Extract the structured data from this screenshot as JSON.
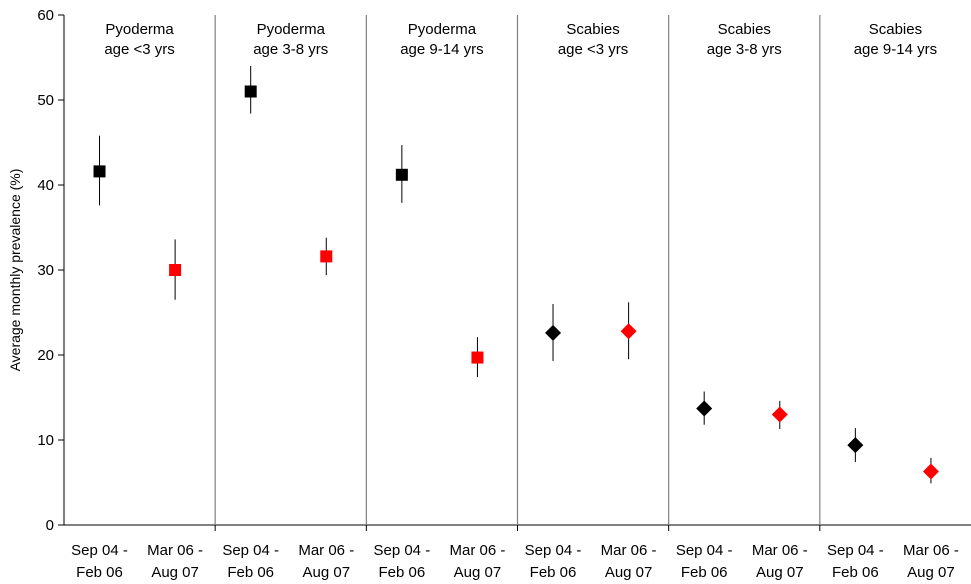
{
  "chart_data": {
    "type": "scatter",
    "ylabel": "Average monthly prevalence (%)",
    "ylim": [
      0,
      60
    ],
    "y_ticks": [
      0,
      10,
      20,
      30,
      40,
      50,
      60
    ],
    "period_labels": [
      [
        "Sep 04 -",
        "Feb 06"
      ],
      [
        "Mar 06 -",
        "Aug 07"
      ]
    ],
    "grid": false,
    "panels": [
      {
        "title": [
          "Pyoderma",
          "age <3 yrs"
        ],
        "marker": "square",
        "points": [
          {
            "period": 0,
            "value": 41.6,
            "lower": 37.6,
            "upper": 45.8,
            "color": "#000000"
          },
          {
            "period": 1,
            "value": 30.0,
            "lower": 26.5,
            "upper": 33.6,
            "color": "#ff0000"
          }
        ]
      },
      {
        "title": [
          "Pyoderma",
          "age 3-8 yrs"
        ],
        "marker": "square",
        "points": [
          {
            "period": 0,
            "value": 51.0,
            "lower": 48.4,
            "upper": 54.0,
            "color": "#000000"
          },
          {
            "period": 1,
            "value": 31.6,
            "lower": 29.4,
            "upper": 33.8,
            "color": "#ff0000"
          }
        ]
      },
      {
        "title": [
          "Pyoderma",
          "age 9-14 yrs"
        ],
        "marker": "square",
        "points": [
          {
            "period": 0,
            "value": 41.2,
            "lower": 37.9,
            "upper": 44.7,
            "color": "#000000"
          },
          {
            "period": 1,
            "value": 19.7,
            "lower": 17.4,
            "upper": 22.1,
            "color": "#ff0000"
          }
        ]
      },
      {
        "title": [
          "Scabies",
          "age <3 yrs"
        ],
        "marker": "diamond",
        "points": [
          {
            "period": 0,
            "value": 22.6,
            "lower": 19.3,
            "upper": 26.0,
            "color": "#000000"
          },
          {
            "period": 1,
            "value": 22.8,
            "lower": 19.5,
            "upper": 26.2,
            "color": "#ff0000"
          }
        ]
      },
      {
        "title": [
          "Scabies",
          "age 3-8 yrs"
        ],
        "marker": "diamond",
        "points": [
          {
            "period": 0,
            "value": 13.7,
            "lower": 11.8,
            "upper": 15.7,
            "color": "#000000"
          },
          {
            "period": 1,
            "value": 13.0,
            "lower": 11.3,
            "upper": 14.6,
            "color": "#ff0000"
          }
        ]
      },
      {
        "title": [
          "Scabies",
          "age 9-14 yrs"
        ],
        "marker": "diamond",
        "points": [
          {
            "period": 0,
            "value": 9.4,
            "lower": 7.4,
            "upper": 11.4,
            "color": "#000000"
          },
          {
            "period": 1,
            "value": 6.3,
            "lower": 4.9,
            "upper": 7.9,
            "color": "#ff0000"
          }
        ]
      }
    ]
  }
}
